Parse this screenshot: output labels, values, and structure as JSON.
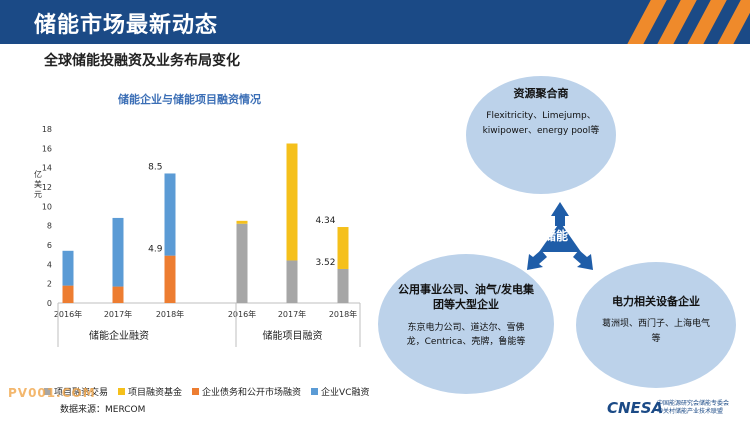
{
  "header": {
    "title": "储能市场最新动态"
  },
  "subtitle": "全球储能投融资及业务布局变化",
  "chart_data": {
    "type": "bar",
    "title": "储能企业与储能项目融资情况",
    "ylabel": "亿美元",
    "ylim": [
      0,
      18
    ],
    "yticks": [
      0,
      2,
      4,
      6,
      8,
      10,
      12,
      14,
      16,
      18
    ],
    "groups": [
      {
        "label": "储能企业融资",
        "categories": [
          "2016年",
          "2017年",
          "2018年"
        ]
      },
      {
        "label": "储能项目融资",
        "categories": [
          "2016年",
          "2017年",
          "2018年"
        ]
      }
    ],
    "series": [
      {
        "name": "项目融资交易",
        "color": "#a6a6a6",
        "values": [
          null,
          null,
          null,
          8.2,
          4.4,
          3.52
        ]
      },
      {
        "name": "项目融资基金",
        "color": "#f5c01b",
        "values": [
          null,
          null,
          null,
          0.3,
          12.1,
          4.34
        ]
      },
      {
        "name": "企业债务和公开市场融资",
        "color": "#ed7d31",
        "values": [
          1.8,
          1.7,
          4.9,
          null,
          null,
          null
        ]
      },
      {
        "name": "企业VC融资",
        "color": "#5b9bd5",
        "values": [
          3.6,
          7.1,
          8.5,
          null,
          null,
          null
        ]
      }
    ],
    "data_labels": [
      {
        "text": "8.5",
        "bar": 2,
        "series": "企业VC融资"
      },
      {
        "text": "4.9",
        "bar": 2,
        "series": "企业债务和公开市场融资"
      },
      {
        "text": "3.52",
        "bar": 5,
        "series": "项目融资交易"
      },
      {
        "text": "4.34",
        "bar": 5,
        "series": "项目融资基金"
      }
    ]
  },
  "legend": [
    "项目融资交易",
    "项目融资基金",
    "企业债务和公开市场融资",
    "企业VC融资"
  ],
  "source": "数据来源：MERCOM",
  "watermark": "PV001.COM",
  "circles": {
    "top": {
      "title": "资源聚合商",
      "body": "Flexitricity、Limejump、kiwipower、energy pool等"
    },
    "left": {
      "title": "公用事业公司、油气/发电集团等大型企业",
      "body": "东京电力公司、道达尔、雪佛龙，Centrica、壳牌，鲁能等"
    },
    "right": {
      "title": "电力相关设备企业",
      "body": "葛洲坝、西门子、上海电气等"
    },
    "center": "储能"
  },
  "logo": {
    "name": "CNESA",
    "line1": "中国能源研究会储能专委会",
    "line2": "中关村储能产业技术联盟"
  }
}
